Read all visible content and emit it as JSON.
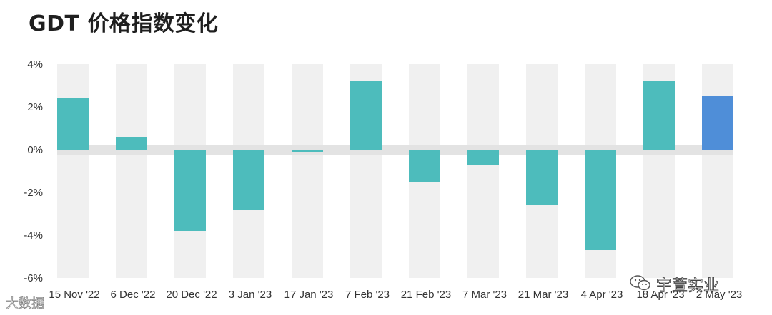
{
  "title": "GDT 价格指数变化",
  "watermarks": {
    "right": "宇萱实业",
    "left": "大数据",
    "right_icon": "wechat-icon"
  },
  "colors": {
    "bar": "#4dbcbc",
    "bar_highlight": "#4f8ed8",
    "stripe": "#f0f0f0",
    "zero_band": "#e3e3e3",
    "tick_text": "#333333"
  },
  "chart_data": {
    "type": "bar",
    "title": "GDT 价格指数变化",
    "xlabel": "",
    "ylabel": "",
    "ylim": [
      -6,
      4
    ],
    "yticks": [
      4,
      2,
      0,
      -2,
      -4,
      -6
    ],
    "ytick_labels": [
      "4%",
      "2%",
      "0%",
      "-2%",
      "-4%",
      "-6%"
    ],
    "categories": [
      "15 Nov '22",
      "6 Dec '22",
      "20 Dec '22",
      "3 Jan '23",
      "17 Jan '23",
      "7 Feb '23",
      "21 Feb '23",
      "7 Mar '23",
      "21 Mar '23",
      "4 Apr '23",
      "18 Apr '23",
      "2 May '23"
    ],
    "values": [
      2.4,
      0.6,
      -3.8,
      -2.8,
      -0.1,
      3.2,
      -1.5,
      -0.7,
      -2.6,
      -4.7,
      3.2,
      2.5
    ],
    "highlight_index": 11,
    "grid": false,
    "legend": "none"
  }
}
